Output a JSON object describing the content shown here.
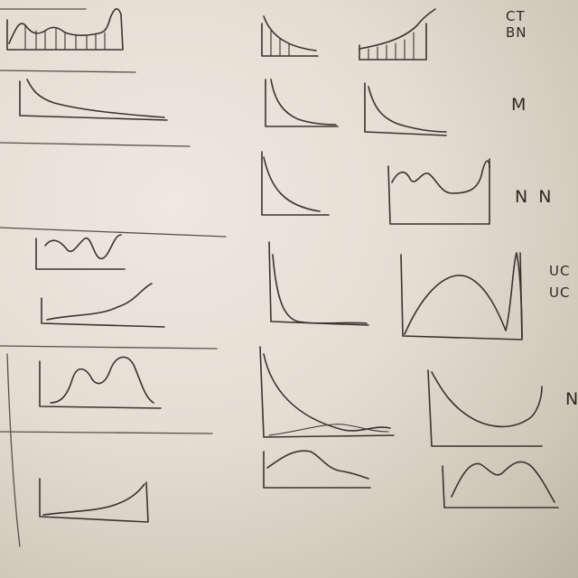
{
  "labels": {
    "ct": "CT",
    "bn": "BN",
    "m": "M",
    "nn": "N N",
    "uc1": "UC",
    "uc2": "UC",
    "right_partial": "N"
  },
  "colors": {
    "ink": "#3a3330",
    "board": "#e3ddd3"
  }
}
